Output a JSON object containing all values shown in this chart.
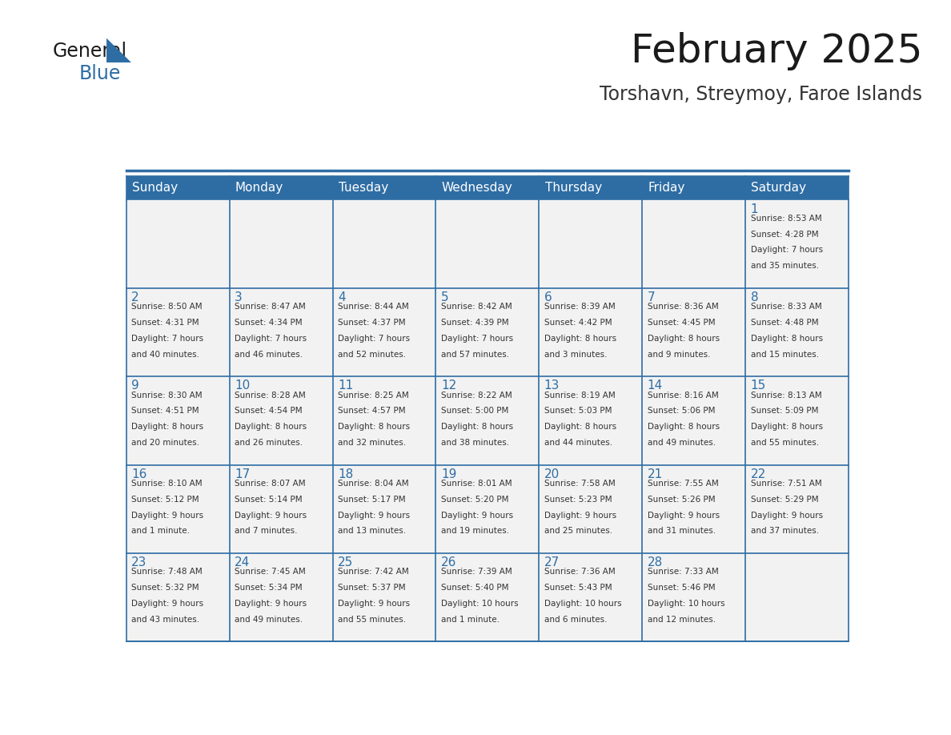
{
  "title": "February 2025",
  "subtitle": "Torshavn, Streymoy, Faroe Islands",
  "header_bg": "#2E6DA4",
  "header_text": "#FFFFFF",
  "cell_bg": "#F2F2F2",
  "border_color": "#2E6DA4",
  "day_names": [
    "Sunday",
    "Monday",
    "Tuesday",
    "Wednesday",
    "Thursday",
    "Friday",
    "Saturday"
  ],
  "title_color": "#1a1a1a",
  "subtitle_color": "#333333",
  "text_color": "#333333",
  "day_num_color": "#2E6DA4",
  "calendar": [
    [
      null,
      null,
      null,
      null,
      null,
      null,
      1
    ],
    [
      2,
      3,
      4,
      5,
      6,
      7,
      8
    ],
    [
      9,
      10,
      11,
      12,
      13,
      14,
      15
    ],
    [
      16,
      17,
      18,
      19,
      20,
      21,
      22
    ],
    [
      23,
      24,
      25,
      26,
      27,
      28,
      null
    ]
  ],
  "cell_data": {
    "1": [
      "Sunrise: 8:53 AM",
      "Sunset: 4:28 PM",
      "Daylight: 7 hours",
      "and 35 minutes."
    ],
    "2": [
      "Sunrise: 8:50 AM",
      "Sunset: 4:31 PM",
      "Daylight: 7 hours",
      "and 40 minutes."
    ],
    "3": [
      "Sunrise: 8:47 AM",
      "Sunset: 4:34 PM",
      "Daylight: 7 hours",
      "and 46 minutes."
    ],
    "4": [
      "Sunrise: 8:44 AM",
      "Sunset: 4:37 PM",
      "Daylight: 7 hours",
      "and 52 minutes."
    ],
    "5": [
      "Sunrise: 8:42 AM",
      "Sunset: 4:39 PM",
      "Daylight: 7 hours",
      "and 57 minutes."
    ],
    "6": [
      "Sunrise: 8:39 AM",
      "Sunset: 4:42 PM",
      "Daylight: 8 hours",
      "and 3 minutes."
    ],
    "7": [
      "Sunrise: 8:36 AM",
      "Sunset: 4:45 PM",
      "Daylight: 8 hours",
      "and 9 minutes."
    ],
    "8": [
      "Sunrise: 8:33 AM",
      "Sunset: 4:48 PM",
      "Daylight: 8 hours",
      "and 15 minutes."
    ],
    "9": [
      "Sunrise: 8:30 AM",
      "Sunset: 4:51 PM",
      "Daylight: 8 hours",
      "and 20 minutes."
    ],
    "10": [
      "Sunrise: 8:28 AM",
      "Sunset: 4:54 PM",
      "Daylight: 8 hours",
      "and 26 minutes."
    ],
    "11": [
      "Sunrise: 8:25 AM",
      "Sunset: 4:57 PM",
      "Daylight: 8 hours",
      "and 32 minutes."
    ],
    "12": [
      "Sunrise: 8:22 AM",
      "Sunset: 5:00 PM",
      "Daylight: 8 hours",
      "and 38 minutes."
    ],
    "13": [
      "Sunrise: 8:19 AM",
      "Sunset: 5:03 PM",
      "Daylight: 8 hours",
      "and 44 minutes."
    ],
    "14": [
      "Sunrise: 8:16 AM",
      "Sunset: 5:06 PM",
      "Daylight: 8 hours",
      "and 49 minutes."
    ],
    "15": [
      "Sunrise: 8:13 AM",
      "Sunset: 5:09 PM",
      "Daylight: 8 hours",
      "and 55 minutes."
    ],
    "16": [
      "Sunrise: 8:10 AM",
      "Sunset: 5:12 PM",
      "Daylight: 9 hours",
      "and 1 minute."
    ],
    "17": [
      "Sunrise: 8:07 AM",
      "Sunset: 5:14 PM",
      "Daylight: 9 hours",
      "and 7 minutes."
    ],
    "18": [
      "Sunrise: 8:04 AM",
      "Sunset: 5:17 PM",
      "Daylight: 9 hours",
      "and 13 minutes."
    ],
    "19": [
      "Sunrise: 8:01 AM",
      "Sunset: 5:20 PM",
      "Daylight: 9 hours",
      "and 19 minutes."
    ],
    "20": [
      "Sunrise: 7:58 AM",
      "Sunset: 5:23 PM",
      "Daylight: 9 hours",
      "and 25 minutes."
    ],
    "21": [
      "Sunrise: 7:55 AM",
      "Sunset: 5:26 PM",
      "Daylight: 9 hours",
      "and 31 minutes."
    ],
    "22": [
      "Sunrise: 7:51 AM",
      "Sunset: 5:29 PM",
      "Daylight: 9 hours",
      "and 37 minutes."
    ],
    "23": [
      "Sunrise: 7:48 AM",
      "Sunset: 5:32 PM",
      "Daylight: 9 hours",
      "and 43 minutes."
    ],
    "24": [
      "Sunrise: 7:45 AM",
      "Sunset: 5:34 PM",
      "Daylight: 9 hours",
      "and 49 minutes."
    ],
    "25": [
      "Sunrise: 7:42 AM",
      "Sunset: 5:37 PM",
      "Daylight: 9 hours",
      "and 55 minutes."
    ],
    "26": [
      "Sunrise: 7:39 AM",
      "Sunset: 5:40 PM",
      "Daylight: 10 hours",
      "and 1 minute."
    ],
    "27": [
      "Sunrise: 7:36 AM",
      "Sunset: 5:43 PM",
      "Daylight: 10 hours",
      "and 6 minutes."
    ],
    "28": [
      "Sunrise: 7:33 AM",
      "Sunset: 5:46 PM",
      "Daylight: 10 hours",
      "and 12 minutes."
    ]
  }
}
